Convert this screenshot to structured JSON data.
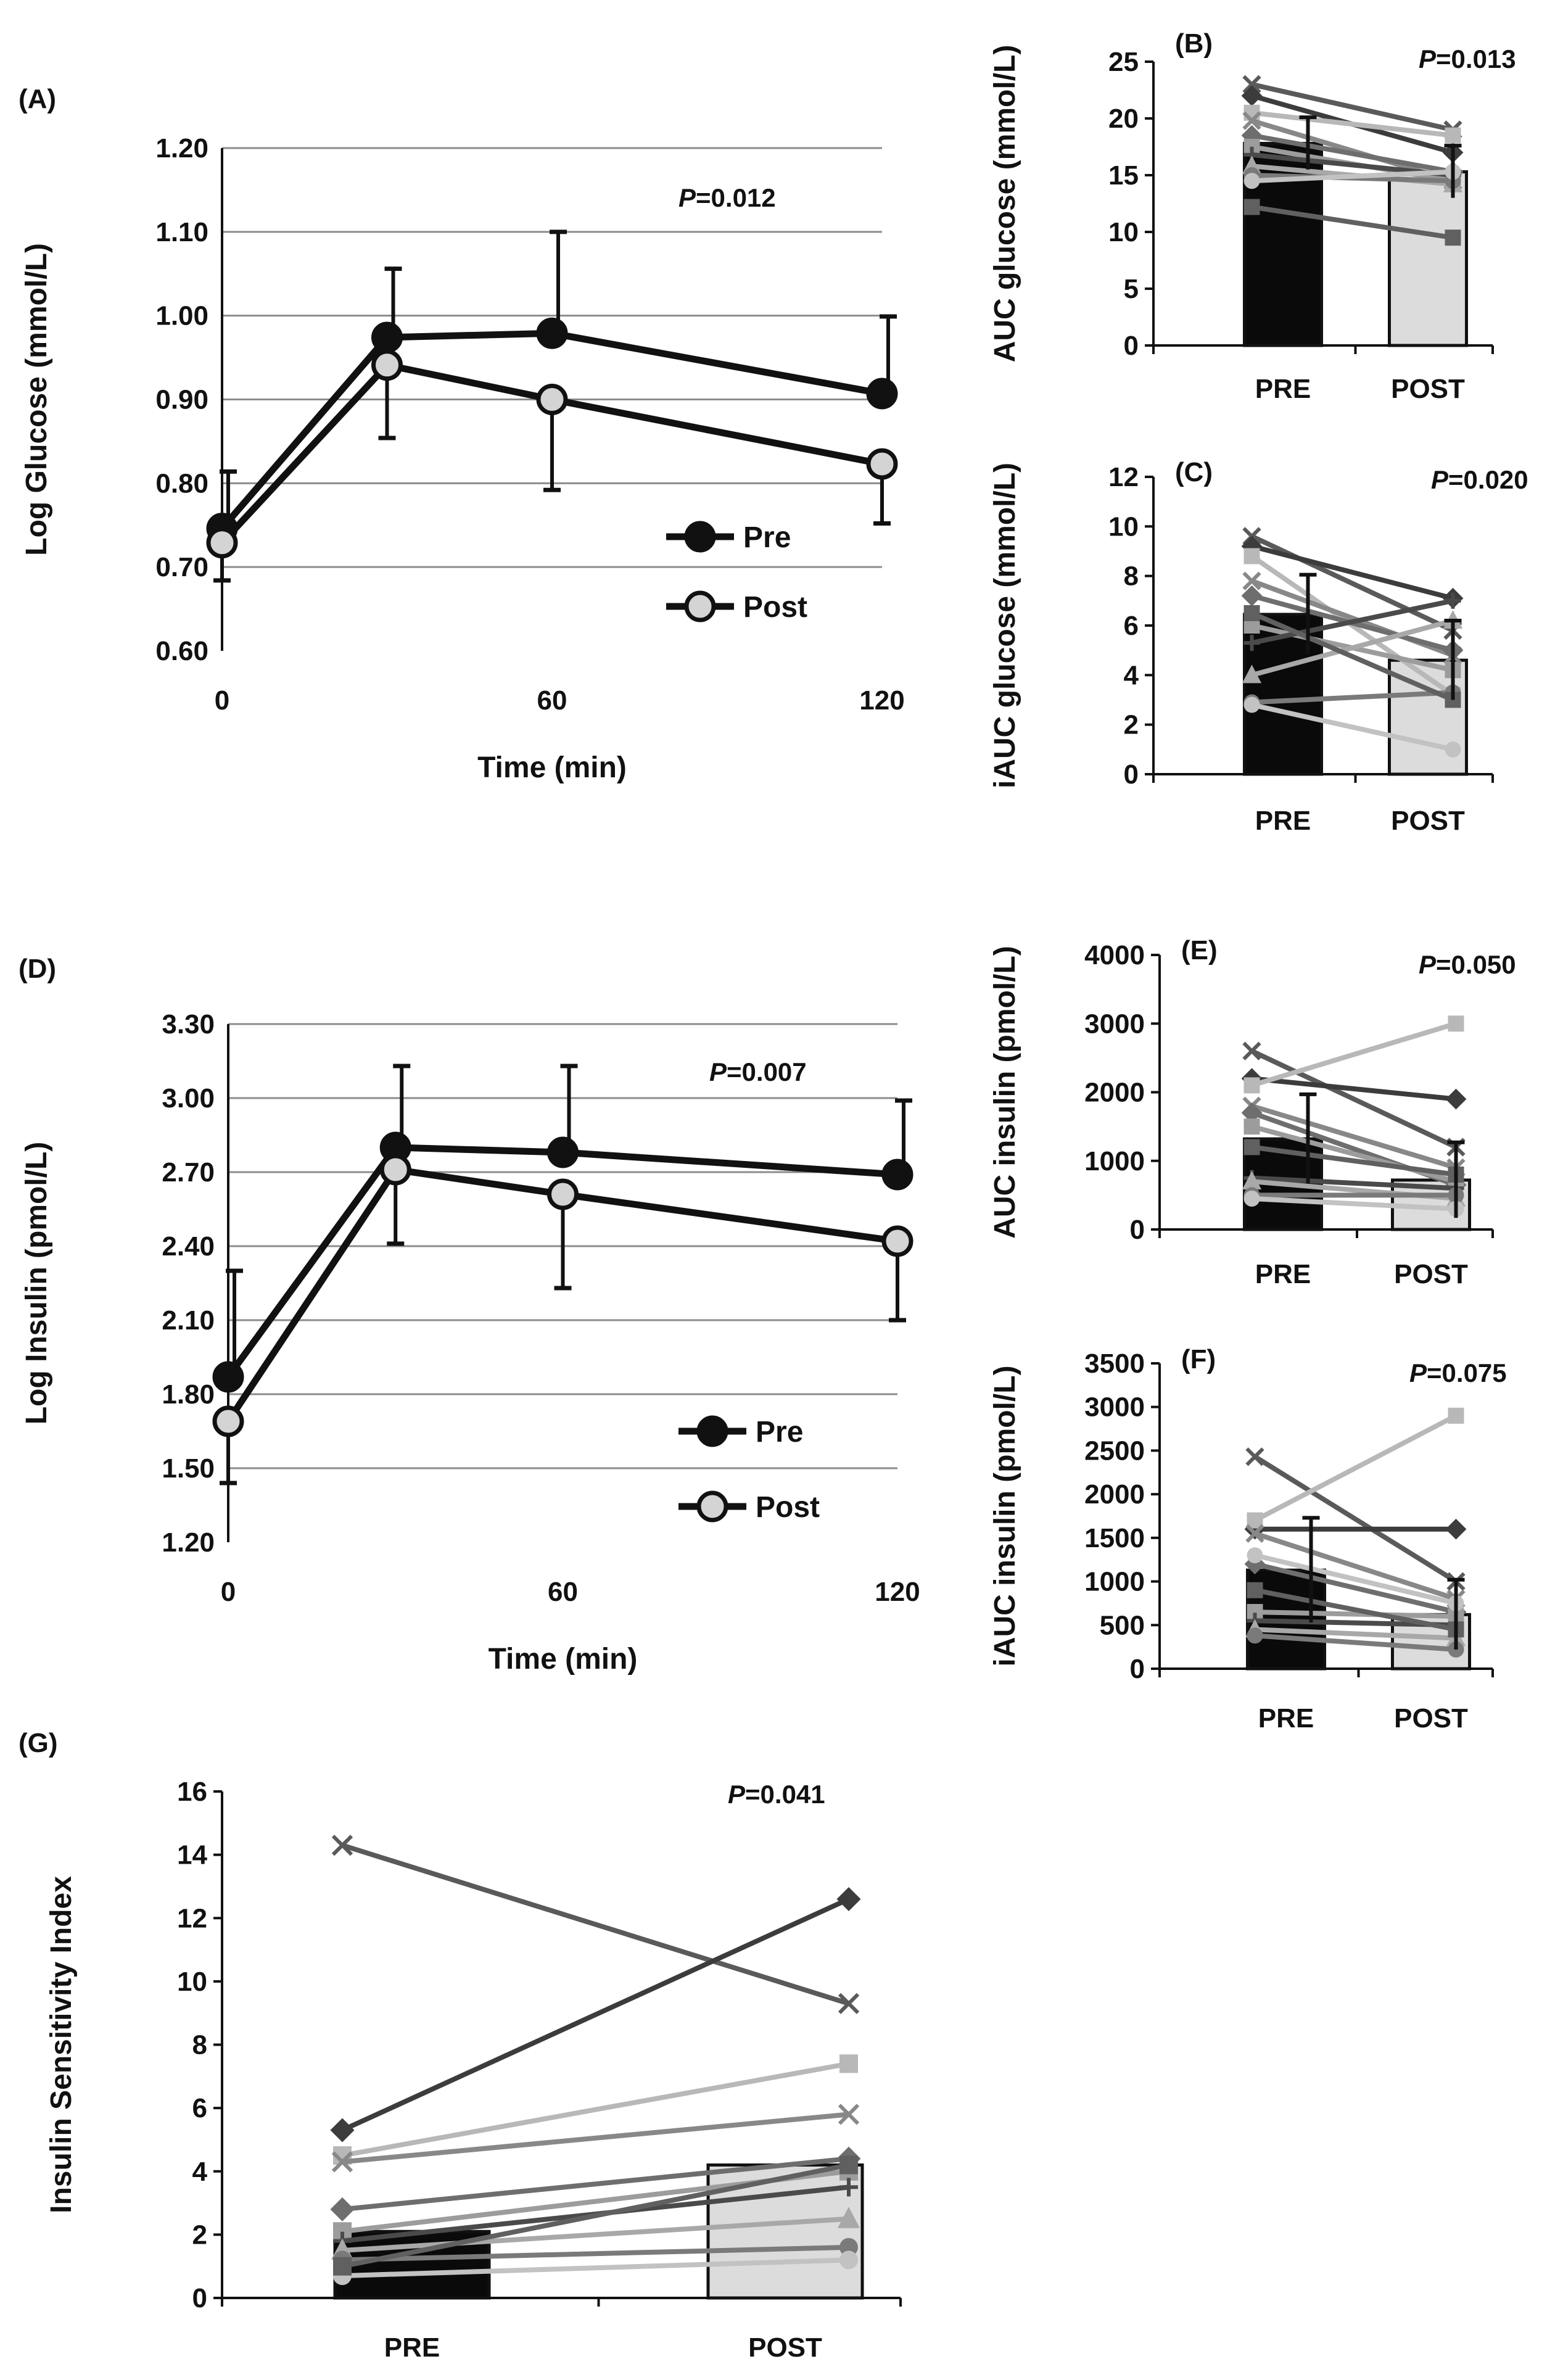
{
  "chart_data": [
    {
      "id": "A",
      "type": "line",
      "panel_label": "(A)",
      "ylabel": "Log Glucose (mmol/L)",
      "xlabel": "Time (min)",
      "yticks": [
        "0.60",
        "0.70",
        "0.80",
        "0.90",
        "1.00",
        "1.10",
        "1.20"
      ],
      "ylim": [
        0.6,
        1.2
      ],
      "xticks": [
        "0",
        "60",
        "120"
      ],
      "xlim": [
        0,
        120
      ],
      "grid": true,
      "pvalue_prefix": "P",
      "pvalue": "=0.012",
      "legend_position": "bottom-right",
      "series": [
        {
          "name": "Pre",
          "marker": "filled",
          "x": [
            0,
            30,
            60,
            120
          ],
          "y": [
            0.746,
            0.974,
            0.979,
            0.907
          ],
          "err": [
            0.068,
            0.082,
            0.121,
            0.092
          ]
        },
        {
          "name": "Post",
          "marker": "open",
          "x": [
            0,
            30,
            60,
            120
          ],
          "y": [
            0.729,
            0.941,
            0.9,
            0.823
          ],
          "err": [
            0.045,
            0.087,
            0.108,
            0.071
          ]
        }
      ]
    },
    {
      "id": "B",
      "type": "bar",
      "panel_label": "(B)",
      "ylabel": "AUC glucose (mmol/L)",
      "yticks": [
        "0",
        "5",
        "10",
        "15",
        "20",
        "25"
      ],
      "ylim": [
        0,
        25
      ],
      "categories": [
        "PRE",
        "POST"
      ],
      "values": [
        17.8,
        15.3
      ],
      "errors": [
        2.3,
        2.3
      ],
      "pvalue_prefix": "P",
      "pvalue": "=0.013",
      "individuals": [
        [
          23.0,
          19.0
        ],
        [
          22.0,
          17.0
        ],
        [
          20.5,
          18.5
        ],
        [
          19.8,
          14.5
        ],
        [
          18.5,
          15.3
        ],
        [
          17.5,
          14.5
        ],
        [
          16.8,
          15.0
        ],
        [
          15.8,
          14.2
        ],
        [
          15.0,
          14.5
        ],
        [
          14.5,
          15.3
        ],
        [
          12.2,
          9.5
        ]
      ]
    },
    {
      "id": "C",
      "type": "bar",
      "panel_label": "(C)",
      "ylabel": "iAUC glucose (mmol/L)",
      "yticks": [
        "0",
        "2",
        "4",
        "6",
        "8",
        "10",
        "12"
      ],
      "ylim": [
        0,
        12
      ],
      "categories": [
        "PRE",
        "POST"
      ],
      "values": [
        6.45,
        4.6
      ],
      "errors": [
        1.6,
        1.6
      ],
      "pvalue_prefix": "P",
      "pvalue": "=0.020",
      "individuals": [
        [
          9.6,
          5.8
        ],
        [
          9.2,
          7.1
        ],
        [
          8.8,
          3.2
        ],
        [
          7.8,
          4.8
        ],
        [
          7.2,
          5.0
        ],
        [
          6.0,
          4.2
        ],
        [
          5.3,
          7.0
        ],
        [
          4.0,
          6.2
        ],
        [
          2.9,
          3.3
        ],
        [
          2.8,
          1.0
        ],
        [
          6.5,
          3.0
        ]
      ]
    },
    {
      "id": "D",
      "type": "line",
      "panel_label": "(D)",
      "ylabel": "Log Insulin (pmol/L)",
      "xlabel": "Time (min)",
      "yticks": [
        "1.20",
        "1.50",
        "1.80",
        "2.10",
        "2.40",
        "2.70",
        "3.00",
        "3.30"
      ],
      "ylim": [
        1.2,
        3.3
      ],
      "xticks": [
        "0",
        "60",
        "120"
      ],
      "xlim": [
        0,
        120
      ],
      "grid": true,
      "pvalue_prefix": "P",
      "pvalue": "=0.007",
      "legend_position": "bottom-right",
      "series": [
        {
          "name": "Pre",
          "marker": "filled",
          "x": [
            0,
            30,
            60,
            120
          ],
          "y": [
            1.87,
            2.8,
            2.78,
            2.69
          ],
          "err": [
            0.43,
            0.33,
            0.35,
            0.3
          ]
        },
        {
          "name": "Post",
          "marker": "open",
          "x": [
            0,
            30,
            60,
            120
          ],
          "y": [
            1.69,
            2.71,
            2.61,
            2.42
          ],
          "err": [
            0.25,
            0.3,
            0.38,
            0.32
          ]
        }
      ]
    },
    {
      "id": "E",
      "type": "bar",
      "panel_label": "(E)",
      "ylabel": "AUC insulin (pmol/L)",
      "yticks": [
        "0",
        "1000",
        "2000",
        "3000",
        "4000"
      ],
      "ylim": [
        0,
        4000
      ],
      "categories": [
        "PRE",
        "POST"
      ],
      "values": [
        1320,
        720
      ],
      "errors": [
        650,
        550
      ],
      "pvalue_prefix": "P",
      "pvalue": "=0.050",
      "individuals": [
        [
          2600,
          1200
        ],
        [
          2200,
          1900
        ],
        [
          2100,
          3000
        ],
        [
          1800,
          900
        ],
        [
          1700,
          650
        ],
        [
          1500,
          700
        ],
        [
          750,
          600
        ],
        [
          700,
          450
        ],
        [
          500,
          500
        ],
        [
          450,
          300
        ],
        [
          1200,
          800
        ]
      ]
    },
    {
      "id": "F",
      "type": "bar",
      "panel_label": "(F)",
      "ylabel": "iAUC insulin (pmol/L)",
      "yticks": [
        "0",
        "500",
        "1000",
        "1500",
        "2000",
        "2500",
        "3000",
        "3500"
      ],
      "ylim": [
        0,
        3500
      ],
      "categories": [
        "PRE",
        "POST"
      ],
      "values": [
        1130,
        620
      ],
      "errors": [
        600,
        400
      ],
      "pvalue_prefix": "P",
      "pvalue": "=0.075",
      "individuals": [
        [
          2430,
          1000
        ],
        [
          1600,
          1600
        ],
        [
          1700,
          2900
        ],
        [
          1550,
          800
        ],
        [
          1200,
          650
        ],
        [
          650,
          600
        ],
        [
          550,
          500
        ],
        [
          450,
          350
        ],
        [
          380,
          220
        ],
        [
          1300,
          750
        ],
        [
          900,
          450
        ]
      ]
    },
    {
      "id": "G",
      "type": "bar",
      "panel_label": "(G)",
      "ylabel": "Insulin Sensitivity Index",
      "yticks": [
        "0",
        "2",
        "4",
        "6",
        "8",
        "10",
        "12",
        "14",
        "16"
      ],
      "ylim": [
        0,
        16
      ],
      "categories": [
        "PRE",
        "POST"
      ],
      "values": [
        2.1,
        4.2
      ],
      "errors": [
        0,
        0
      ],
      "pvalue_prefix": "P",
      "pvalue": "=0.041",
      "individuals": [
        [
          14.3,
          9.3
        ],
        [
          5.3,
          12.6
        ],
        [
          4.5,
          7.4
        ],
        [
          4.3,
          5.8
        ],
        [
          2.8,
          4.4
        ],
        [
          2.1,
          4.0
        ],
        [
          1.8,
          3.5
        ],
        [
          1.5,
          2.5
        ],
        [
          1.2,
          1.6
        ],
        [
          0.7,
          1.2
        ],
        [
          1.0,
          4.2
        ]
      ]
    }
  ]
}
